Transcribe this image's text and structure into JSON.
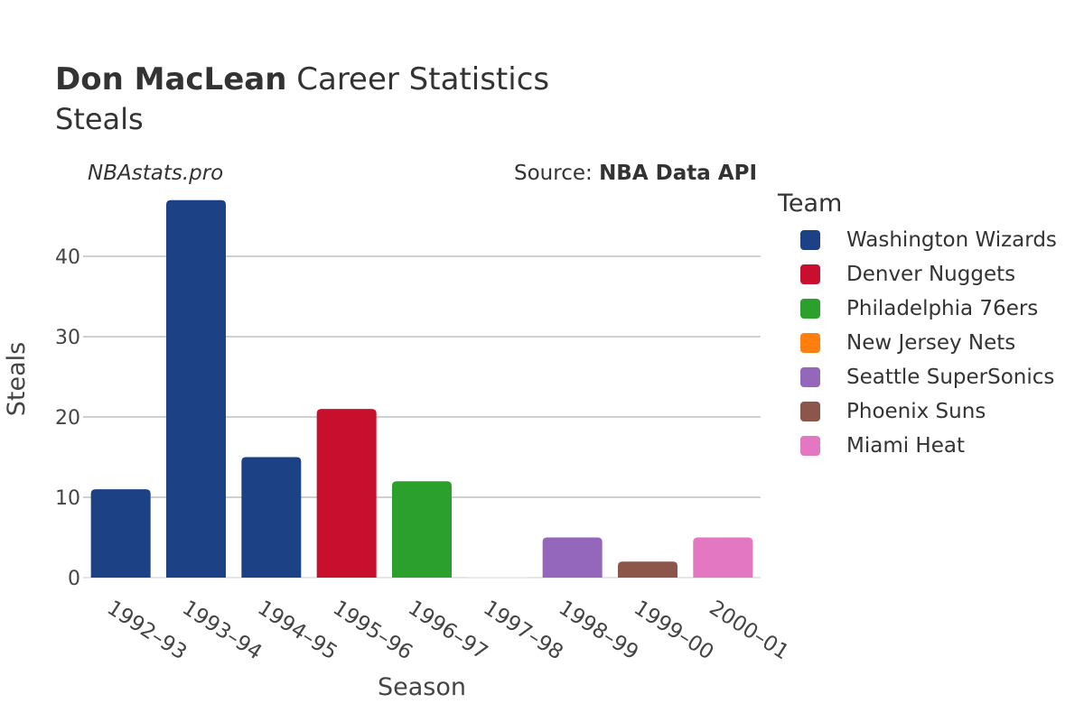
{
  "header": {
    "title_bold": "Don MacLean",
    "title_rest": " Career Statistics",
    "subtitle": "Steals",
    "watermark": "NBAstats.pro",
    "source_prefix": "Source: ",
    "source_name": "NBA Data API"
  },
  "legend": {
    "title": "Team",
    "items": [
      {
        "label": "Washington Wizards",
        "color": "#1c4185"
      },
      {
        "label": "Denver Nuggets",
        "color": "#c8102e"
      },
      {
        "label": "Philadelphia 76ers",
        "color": "#2ca02c"
      },
      {
        "label": "New Jersey Nets",
        "color": "#ff7f0e"
      },
      {
        "label": "Seattle SuperSonics",
        "color": "#9467bd"
      },
      {
        "label": "Phoenix Suns",
        "color": "#8c564b"
      },
      {
        "label": "Miami Heat",
        "color": "#e377c2"
      }
    ]
  },
  "chart_data": {
    "type": "bar",
    "xlabel": "Season",
    "ylabel": "Steals",
    "categories": [
      "1992–93",
      "1993–94",
      "1994–95",
      "1995–96",
      "1996–97",
      "1997–98",
      "1998–99",
      "1999–00",
      "2000–01"
    ],
    "values": [
      11,
      47,
      15,
      21,
      12,
      0,
      5,
      2,
      5
    ],
    "teams": [
      "Washington Wizards",
      "Washington Wizards",
      "Washington Wizards",
      "Denver Nuggets",
      "Philadelphia 76ers",
      "New Jersey Nets",
      "Seattle SuperSonics",
      "Phoenix Suns",
      "Miami Heat"
    ],
    "colors": [
      "#1c4185",
      "#1c4185",
      "#1c4185",
      "#c8102e",
      "#2ca02c",
      "#ff7f0e",
      "#9467bd",
      "#8c564b",
      "#e377c2"
    ],
    "ylim": [
      0,
      50
    ],
    "yticks": [
      0,
      10,
      20,
      30,
      40
    ],
    "grid": true,
    "legend_position": "right"
  }
}
